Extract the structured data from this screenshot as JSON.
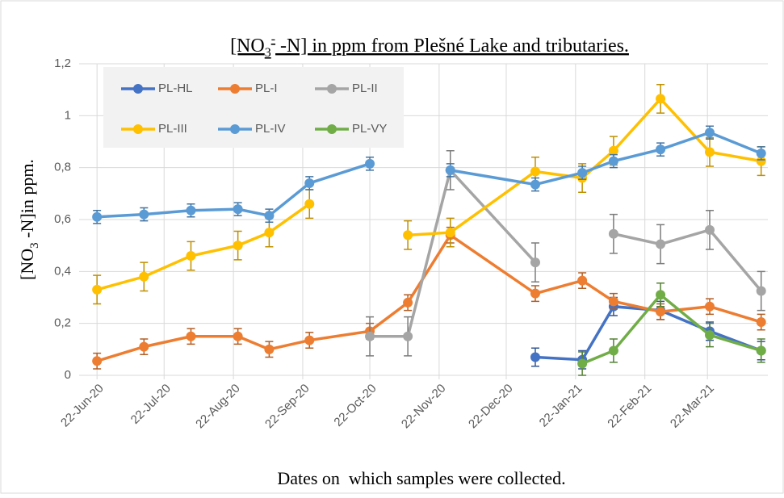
{
  "chart_data": {
    "type": "line",
    "title": [
      "[NO",
      "3",
      "-",
      " -N] in ppm from Plešné Lake and tributaries."
    ],
    "ylabel": [
      "[NO",
      "3",
      " -N]in ppm."
    ],
    "xlabel": "Dates on  which samples were collected.",
    "x": [
      "2020-06-22",
      "2020-07-13",
      "2020-08-03",
      "2020-08-24",
      "2020-09-07",
      "2020-09-25",
      "2020-10-22",
      "2020-11-08",
      "2020-11-27",
      "2021-01-04",
      "2021-01-25",
      "2021-02-08",
      "2021-03-01",
      "2021-03-23",
      "2021-04-15"
    ],
    "series": [
      {
        "name": "PL-HL",
        "color": "#4472c4",
        "values": [
          null,
          null,
          null,
          null,
          null,
          null,
          null,
          null,
          null,
          0.07,
          0.06,
          0.265,
          0.25,
          0.17,
          0.095
        ],
        "errors": [
          null,
          null,
          null,
          null,
          null,
          null,
          null,
          null,
          null,
          0.035,
          0.035,
          0.035,
          0.035,
          0.035,
          0.035
        ]
      },
      {
        "name": "PL-I",
        "color": "#ed7d31",
        "values": [
          0.055,
          0.11,
          0.15,
          0.15,
          0.1,
          0.135,
          0.17,
          0.28,
          0.54,
          0.315,
          0.365,
          0.285,
          0.245,
          0.265,
          0.205
        ],
        "errors": [
          0.03,
          0.03,
          0.03,
          0.03,
          0.03,
          0.03,
          0.03,
          0.03,
          0.03,
          0.03,
          0.03,
          0.03,
          0.03,
          0.03,
          0.03
        ]
      },
      {
        "name": "PL-II",
        "color": "#a5a5a5",
        "values": [
          null,
          null,
          null,
          null,
          null,
          null,
          0.15,
          0.15,
          0.79,
          0.435,
          null,
          0.545,
          0.505,
          0.56,
          0.325
        ],
        "errors": [
          null,
          null,
          null,
          null,
          null,
          null,
          0.075,
          0.075,
          0.075,
          0.075,
          null,
          0.075,
          0.075,
          0.075,
          0.075
        ]
      },
      {
        "name": "PL-III",
        "color": "#ffc000",
        "values": [
          0.33,
          0.38,
          0.46,
          0.5,
          0.55,
          0.66,
          null,
          0.54,
          0.55,
          0.785,
          0.76,
          0.865,
          1.065,
          0.86,
          0.825
        ],
        "errors": [
          0.055,
          0.055,
          0.055,
          0.055,
          0.055,
          0.055,
          null,
          0.055,
          0.055,
          0.055,
          0.055,
          0.055,
          0.055,
          0.055,
          0.055
        ]
      },
      {
        "name": "PL-IV",
        "color": "#5b9bd5",
        "values": [
          0.61,
          0.62,
          0.635,
          0.64,
          0.615,
          0.74,
          0.815,
          null,
          0.79,
          0.735,
          0.78,
          0.825,
          0.87,
          0.935,
          0.855
        ],
        "errors": [
          0.025,
          0.025,
          0.025,
          0.025,
          0.025,
          0.025,
          0.025,
          null,
          0.025,
          0.025,
          0.025,
          0.025,
          0.025,
          0.025,
          0.025
        ]
      },
      {
        "name": "PL-VY",
        "color": "#70ad47",
        "values": [
          null,
          null,
          null,
          null,
          null,
          null,
          null,
          null,
          null,
          null,
          0.045,
          0.095,
          0.31,
          0.155,
          0.095
        ],
        "errors": [
          null,
          null,
          null,
          null,
          null,
          null,
          null,
          null,
          null,
          null,
          0.045,
          0.045,
          0.045,
          0.045,
          0.045
        ]
      }
    ],
    "xlim": [
      "2020-06-14",
      "2021-04-18"
    ],
    "xticks": [
      {
        "value": "2020-06-22",
        "label": "22-Jun-20"
      },
      {
        "value": "2020-07-22",
        "label": "22-Jul-20"
      },
      {
        "value": "2020-08-22",
        "label": "22-Aug-20"
      },
      {
        "value": "2020-09-22",
        "label": "22-Sep-20"
      },
      {
        "value": "2020-10-22",
        "label": "22-Oct-20"
      },
      {
        "value": "2020-11-22",
        "label": "22-Nov-20"
      },
      {
        "value": "2020-12-22",
        "label": "22-Dec-20"
      },
      {
        "value": "2021-01-22",
        "label": "22-Jan-21"
      },
      {
        "value": "2021-02-22",
        "label": "22-Feb-21"
      },
      {
        "value": "2021-03-22",
        "label": "22-Mar-21"
      }
    ],
    "ylim": [
      0,
      1.2
    ],
    "yticks": [
      0,
      {
        "value": 0.2,
        "label": "0,2"
      },
      {
        "value": 0.4,
        "label": "0,4"
      },
      {
        "value": 0.6,
        "label": "0,6"
      },
      {
        "value": 0.8,
        "label": "0,8"
      },
      1,
      {
        "value": 1.2,
        "label": "1,2"
      }
    ],
    "grid": true,
    "legend": "upper left"
  }
}
